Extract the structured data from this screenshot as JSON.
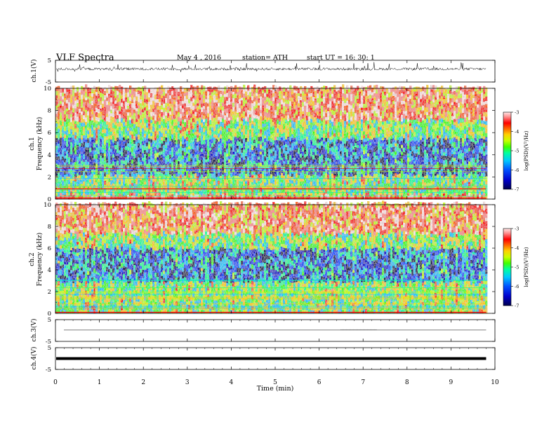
{
  "header": {
    "title": "VLF  Spectra",
    "date": "May 4  , 2016",
    "station": "station= ATH",
    "start": "start  UT  =   16: 30: 1"
  },
  "chart_data": [
    {
      "id": "ch1_waveform",
      "type": "line",
      "ylabel": "ch.1(V)",
      "ylim": [
        -5,
        5
      ],
      "y_ticks": [
        "5",
        "-5"
      ],
      "x_range": [
        0,
        10
      ],
      "data_end_min": 9.8,
      "description_trace": "noisy waveform centred near 1 V with spikes roughly between -2 and 3 V"
    },
    {
      "id": "ch1_spectrogram",
      "type": "heatmap",
      "ylabel": "ch.1\nFrequency  (kHz)",
      "ylim": [
        0,
        10
      ],
      "y_ticks": [
        "0",
        "2",
        "4",
        "6",
        "8",
        "10"
      ],
      "colorbar": {
        "label": "log(PSD)(V²/Hz)",
        "range": [
          -7,
          -3
        ],
        "ticks": [
          "-3",
          "-4",
          "-5",
          "-6",
          "-7"
        ]
      },
      "bands_kHz": [
        {
          "from": 0.0,
          "to": 0.3,
          "level": "high"
        },
        {
          "from": 0.3,
          "to": 2.0,
          "level": "mid"
        },
        {
          "from": 2.0,
          "to": 5.3,
          "level": "low"
        },
        {
          "from": 5.3,
          "to": 7.0,
          "level": "mid"
        },
        {
          "from": 7.0,
          "to": 10.0,
          "level": "high"
        }
      ]
    },
    {
      "id": "ch2_spectrogram",
      "type": "heatmap",
      "ylabel": "ch.2\nFrequency  (kHz)",
      "ylim": [
        0,
        10
      ],
      "y_ticks": [
        "0",
        "2",
        "4",
        "6",
        "8",
        "10"
      ],
      "colorbar": {
        "label": "log(PSD)(V²/Hz)",
        "range": [
          -7,
          -3
        ],
        "ticks": [
          "-3",
          "-4",
          "-5",
          "-6",
          "-7"
        ]
      },
      "bands_kHz": [
        {
          "from": 0.0,
          "to": 2.8,
          "level": "mid"
        },
        {
          "from": 2.8,
          "to": 5.8,
          "level": "low"
        },
        {
          "from": 5.8,
          "to": 7.2,
          "level": "mid"
        },
        {
          "from": 7.2,
          "to": 10.0,
          "level": "high"
        }
      ]
    },
    {
      "id": "ch3_waveform",
      "type": "line",
      "ylabel": "ch.3(V)",
      "ylim": [
        -5,
        5
      ],
      "y_ticks": [
        "5",
        "-5"
      ],
      "level_V": 0.2
    },
    {
      "id": "ch4_waveform",
      "type": "line",
      "ylabel": "ch.4(V)",
      "ylim": [
        -5,
        5
      ],
      "y_ticks": [
        "5",
        "-5"
      ],
      "level_V": 0.0
    }
  ],
  "x_axis": {
    "label": "Time  (min)",
    "ticks": [
      "0",
      "1",
      "2",
      "3",
      "4",
      "5",
      "6",
      "7",
      "8",
      "9",
      "10"
    ],
    "range": [
      0,
      10
    ]
  },
  "colors": {
    "scale": [
      "#00004e",
      "#0000cc",
      "#0050ff",
      "#00c8ff",
      "#00ffa0",
      "#40ff00",
      "#c8ff00",
      "#ffd000",
      "#ff6000",
      "#ff0000",
      "#ff9090",
      "#ffe8e8"
    ]
  }
}
